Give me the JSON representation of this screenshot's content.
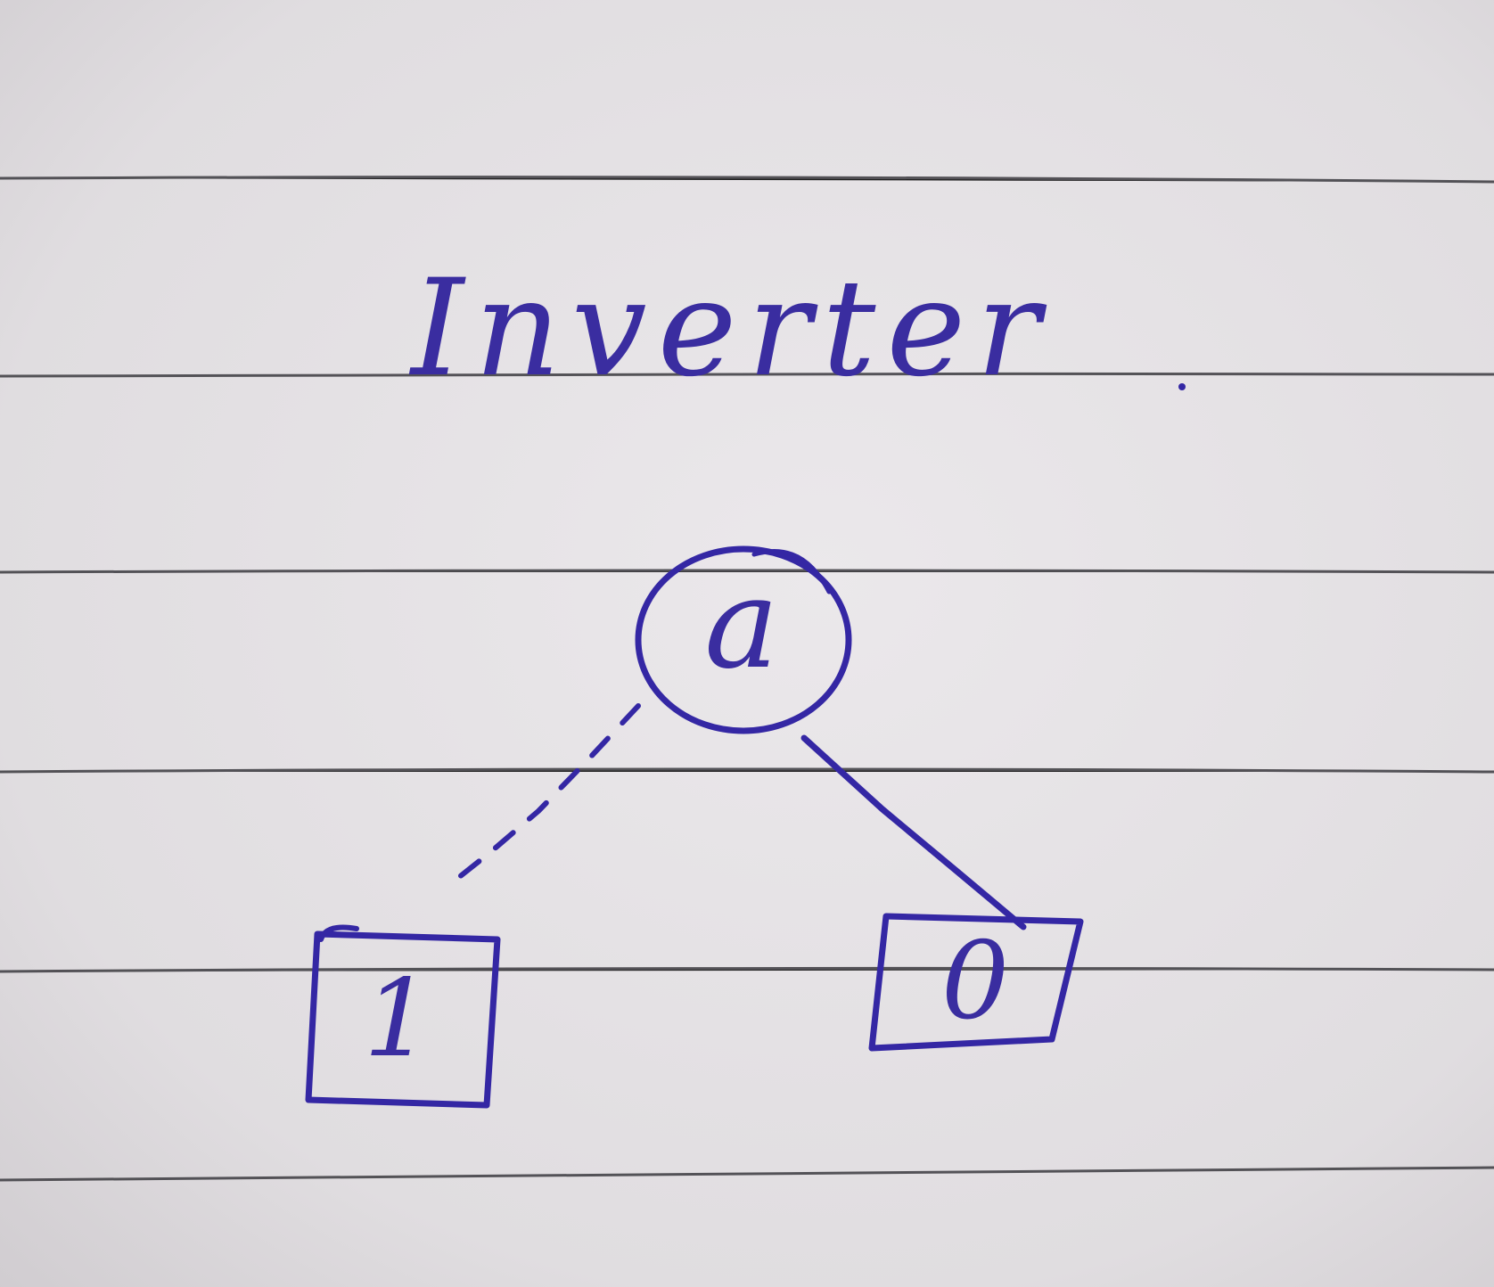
{
  "title": "Inverter",
  "root_node": {
    "label": "a"
  },
  "leaf_nodes": [
    {
      "label": "1",
      "edge_style": "dashed"
    },
    {
      "label": "0",
      "edge_style": "solid"
    }
  ],
  "colors": {
    "ink": "#3427a4",
    "paper": "#e3e0e3",
    "rule": "#3b3a3f"
  }
}
